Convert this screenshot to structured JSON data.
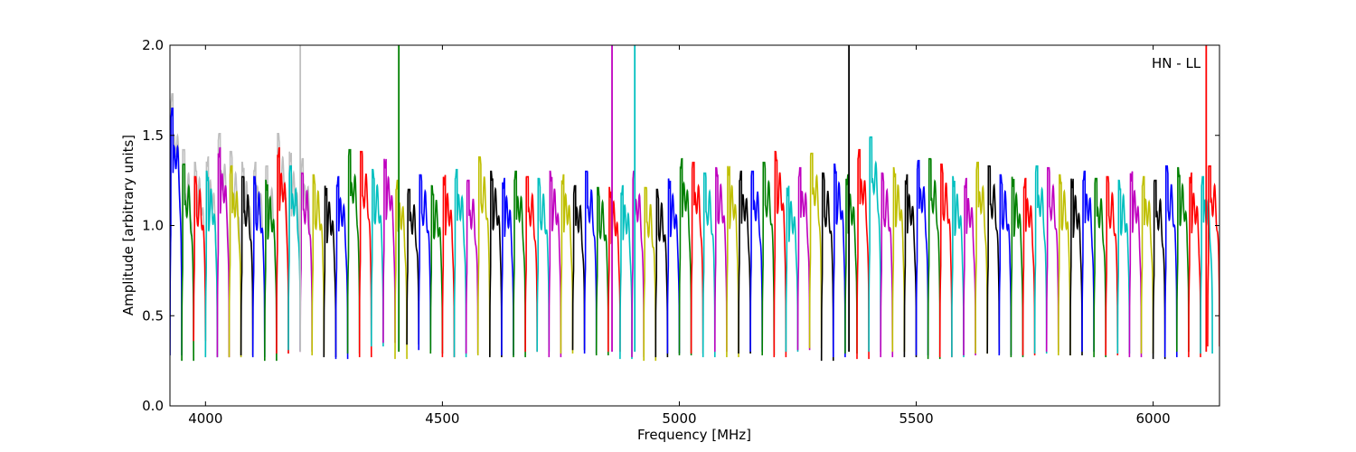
{
  "chart_data": {
    "type": "line",
    "title": "",
    "xlabel": "Frequency [MHz]",
    "ylabel": "Amplitude [arbitrary units]",
    "annotation": "HN - LL",
    "xlim": [
      3925,
      6140
    ],
    "ylim": [
      0.0,
      2.0
    ],
    "xticks": [
      4000,
      4500,
      5000,
      5500,
      6000
    ],
    "yticks": [
      0.0,
      0.5,
      1.0,
      1.5,
      2.0
    ],
    "xtick_labels": [
      "4000",
      "4500",
      "5000",
      "5500",
      "6000"
    ],
    "ytick_labels": [
      "0.0",
      "0.5",
      "1.0",
      "1.5",
      "2.0"
    ],
    "grid": false,
    "legend": "none",
    "colors": [
      "#0000ff",
      "#008000",
      "#ff0000",
      "#00bfbf",
      "#bf00bf",
      "#bfbf00",
      "#000000"
    ],
    "background_trace_color": "#bfbfbf",
    "window_width_mhz": 25,
    "window_starts": [
      3925,
      3950,
      3975,
      4000,
      4025,
      4050,
      4075,
      4100,
      4125,
      4150,
      4175,
      4200,
      4225,
      4250,
      4275,
      4300,
      4325,
      4350,
      4375,
      4400,
      4425,
      4450,
      4475,
      4500,
      4525,
      4550,
      4575,
      4600,
      4625,
      4650,
      4675,
      4700,
      4725,
      4750,
      4775,
      4800,
      4825,
      4850,
      4875,
      4900,
      4925,
      4950,
      4975,
      5000,
      5025,
      5050,
      5075,
      5100,
      5125,
      5150,
      5175,
      5200,
      5225,
      5250,
      5275,
      5300,
      5325,
      5350,
      5375,
      5400,
      5425,
      5450,
      5475,
      5500,
      5525,
      5550,
      5575,
      5600,
      5625,
      5650,
      5675,
      5700,
      5725,
      5750,
      5775,
      5800,
      5825,
      5850,
      5875,
      5900,
      5925,
      5950,
      5975,
      6000,
      6025,
      6050,
      6075,
      6100,
      6115
    ],
    "window_peaks": [
      1.65,
      1.34,
      1.27,
      1.3,
      1.43,
      1.33,
      1.27,
      1.27,
      1.25,
      1.43,
      1.33,
      1.29,
      1.28,
      1.22,
      1.27,
      1.42,
      1.41,
      1.31,
      1.37,
      1.25,
      1.2,
      1.28,
      1.22,
      1.28,
      1.31,
      1.25,
      1.38,
      1.3,
      1.26,
      1.3,
      1.27,
      1.26,
      1.3,
      1.28,
      1.22,
      1.3,
      1.21,
      1.21,
      1.22,
      1.3,
      1.21,
      1.2,
      1.26,
      1.37,
      1.35,
      1.29,
      1.32,
      1.33,
      1.3,
      1.3,
      1.35,
      1.41,
      1.22,
      1.32,
      1.4,
      1.29,
      1.34,
      1.28,
      1.42,
      1.49,
      1.29,
      1.32,
      1.28,
      1.36,
      1.37,
      1.34,
      1.27,
      1.26,
      1.35,
      1.33,
      1.28,
      1.27,
      1.26,
      1.33,
      1.32,
      1.28,
      1.26,
      1.3,
      1.26,
      1.27,
      1.25,
      1.3,
      1.27,
      1.25,
      1.33,
      1.32,
      1.29,
      1.27,
      1.33
    ],
    "window_troughs": [
      0.28,
      0.25,
      0.36,
      0.27,
      0.27,
      0.27,
      0.28,
      0.27,
      0.25,
      0.29,
      0.31,
      0.3,
      0.28,
      0.27,
      0.26,
      0.29,
      0.27,
      0.33,
      0.35,
      0.26,
      0.34,
      0.31,
      0.29,
      0.27,
      0.27,
      0.29,
      0.28,
      0.27,
      0.28,
      0.27,
      0.3,
      0.3,
      0.27,
      0.29,
      0.31,
      0.29,
      0.28,
      0.3,
      0.26,
      0.27,
      0.25,
      0.27,
      0.29,
      0.28,
      0.29,
      0.27,
      0.3,
      0.27,
      0.29,
      0.3,
      0.28,
      0.27,
      0.3,
      0.31,
      0.32,
      0.25,
      0.27,
      0.29,
      0.26,
      0.3,
      0.27,
      0.3,
      0.27,
      0.28,
      0.26,
      0.27,
      0.27,
      0.28,
      0.29,
      0.29,
      0.28,
      0.27,
      0.28,
      0.29,
      0.3,
      0.28,
      0.28,
      0.3,
      0.27,
      0.28,
      0.29,
      0.27,
      0.29,
      0.26,
      0.27,
      0.3,
      0.27,
      0.29,
      0.33
    ],
    "window_color_index": [
      0,
      1,
      2,
      3,
      4,
      5,
      6,
      0,
      1,
      2,
      3,
      4,
      5,
      6,
      0,
      1,
      2,
      3,
      4,
      5,
      6,
      0,
      1,
      2,
      3,
      4,
      5,
      6,
      0,
      1,
      2,
      3,
      4,
      5,
      6,
      0,
      1,
      2,
      3,
      4,
      5,
      6,
      0,
      1,
      2,
      3,
      4,
      5,
      6,
      0,
      1,
      2,
      3,
      4,
      5,
      6,
      0,
      1,
      2,
      3,
      4,
      5,
      6,
      0,
      1,
      2,
      3,
      4,
      5,
      6,
      0,
      1,
      2,
      3,
      4,
      5,
      6,
      0,
      1,
      2,
      3,
      4,
      5,
      6,
      0,
      1,
      2,
      3,
      2
    ],
    "spikes": [
      {
        "x": 4200,
        "y": 2.0,
        "color": "#bfbfbf"
      },
      {
        "x": 4408,
        "y": 2.0,
        "color": "#008000"
      },
      {
        "x": 4858,
        "y": 2.0,
        "color": "#bf00bf"
      },
      {
        "x": 4906,
        "y": 2.0,
        "color": "#00bfbf"
      },
      {
        "x": 5358,
        "y": 2.0,
        "color": "#000000"
      },
      {
        "x": 6112,
        "y": 2.0,
        "color": "#ff0000"
      }
    ]
  }
}
